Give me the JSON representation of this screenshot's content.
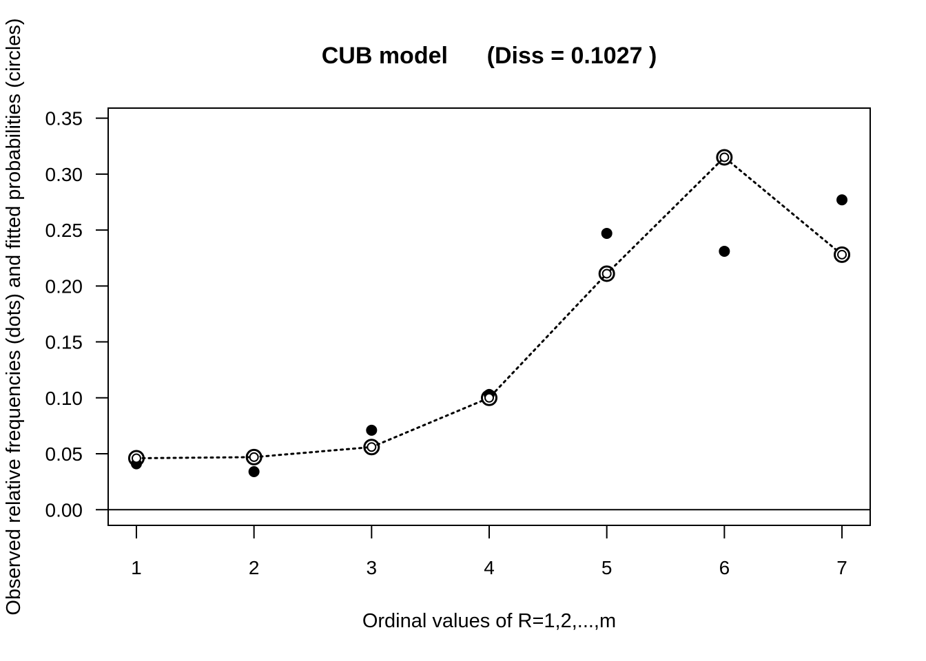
{
  "chart_data": {
    "type": "scatter",
    "title": "CUB model      (Diss = 0.1027 )",
    "xlabel": "Ordinal values of R=1,2,...,m",
    "ylabel": "Observed relative frequencies (dots) and fitted probabilities (circles)",
    "x": [
      1,
      2,
      3,
      4,
      5,
      6,
      7
    ],
    "xticks": [
      "1",
      "2",
      "3",
      "4",
      "5",
      "6",
      "7"
    ],
    "yticks": [
      "0.00",
      "0.05",
      "0.10",
      "0.15",
      "0.20",
      "0.25",
      "0.30",
      "0.35"
    ],
    "xlim": [
      0.76,
      7.24
    ],
    "ylim": [
      -0.014,
      0.359
    ],
    "grid": false,
    "series": [
      {
        "kind": "observed",
        "marker": "filled-dot",
        "values": [
          0.041,
          0.034,
          0.071,
          0.103,
          0.247,
          0.231,
          0.277
        ]
      },
      {
        "kind": "fitted",
        "marker": "open-circle",
        "line": "dotted",
        "values": [
          0.046,
          0.047,
          0.056,
          0.1,
          0.211,
          0.315,
          0.228
        ]
      }
    ],
    "reference_lines": [
      {
        "orientation": "horizontal",
        "y": 0
      }
    ]
  }
}
